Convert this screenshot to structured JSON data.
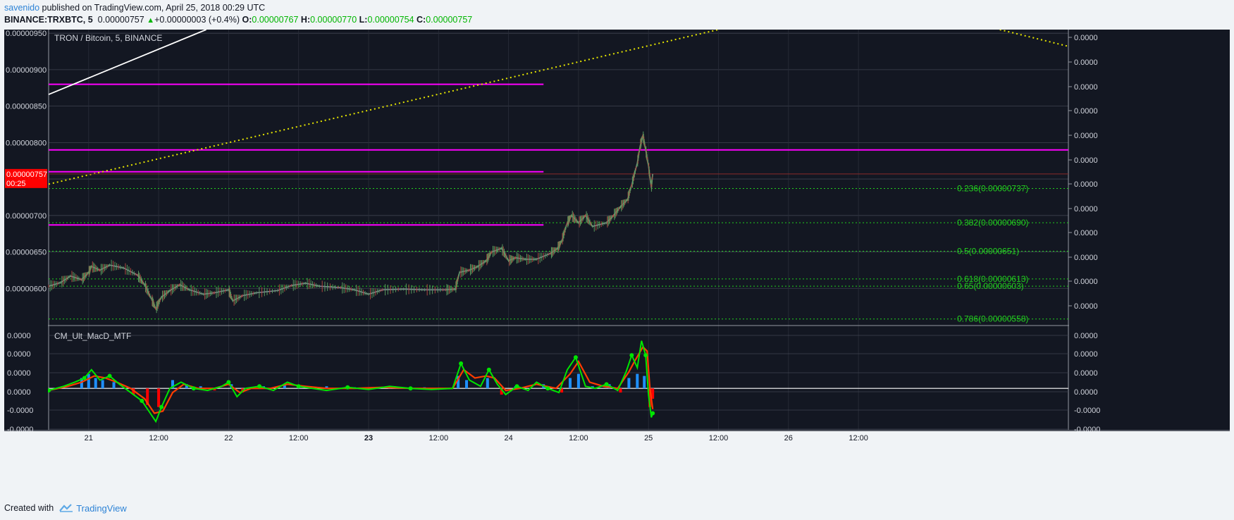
{
  "publish": {
    "author": "savenido",
    "text": "published on TradingView.com, April 25, 2018 00:29 UTC"
  },
  "ticker": {
    "symbol": "BINANCE:TRXBTC, 5",
    "last": "0.00000757",
    "change": "+0.00000003 (+0.4%)",
    "o_label": "O:",
    "o": "0.00000767",
    "h_label": "H:",
    "h": "0.00000770",
    "l_label": "L:",
    "l": "0.00000754",
    "c_label": "C:",
    "c": "0.00000757"
  },
  "footer": {
    "created_with": "Created with",
    "brand": "TradingView"
  },
  "colors": {
    "background": "#131722",
    "grid": "#3f4350",
    "axis_text": "#d1d4dc",
    "fib": "#22d01e",
    "magenta": "#ff00ff",
    "trend_yellow": "#e6e600",
    "trend_white": "#ffffff",
    "macd_green": "#00e600",
    "macd_red": "#ff0000",
    "hist_blue": "#1e90ff",
    "price_tag": "#ff0000"
  },
  "chart_data": [
    {
      "type": "candlestick",
      "title": "TRON / Bitcoin, 5, BINANCE",
      "y_ticks": [
        "0.00000950",
        "0.00000900",
        "0.00000850",
        "0.00000800",
        "0.00000750",
        "0.00000700",
        "0.00000650",
        "0.00000600"
      ],
      "right_ticks": "0.0000",
      "ylim": [
        5.5e-06,
        9.55e-06
      ],
      "x_tick_labels": [
        "21",
        "12:00",
        "22",
        "12:00",
        "23",
        "12:00",
        "24",
        "12:00",
        "25",
        "12:00",
        "26",
        "12:00"
      ],
      "x_tick_positions": [
        1,
        1.5,
        2,
        2.5,
        3,
        3.5,
        4,
        4.5,
        5,
        5.5,
        6,
        6.5
      ],
      "xlim": [
        0.714,
        8.0
      ],
      "last_price_label": "0.00000757",
      "last_price_value": 7.57e-06,
      "countdown": "00:25",
      "price_series": [
        [
          0.714,
          6.03e-06
        ],
        [
          0.8,
          6.08e-06
        ],
        [
          0.87,
          6.17e-06
        ],
        [
          0.95,
          6.12e-06
        ],
        [
          1.0,
          6.22e-06
        ],
        [
          1.02,
          6.3e-06
        ],
        [
          1.08,
          6.25e-06
        ],
        [
          1.15,
          6.32e-06
        ],
        [
          1.25,
          6.28e-06
        ],
        [
          1.35,
          6.18e-06
        ],
        [
          1.4,
          6.05e-06
        ],
        [
          1.45,
          5.85e-06
        ],
        [
          1.48,
          5.72e-06
        ],
        [
          1.52,
          5.88e-06
        ],
        [
          1.58,
          5.97e-06
        ],
        [
          1.65,
          6.05e-06
        ],
        [
          1.72,
          5.98e-06
        ],
        [
          1.82,
          5.92e-06
        ],
        [
          1.9,
          5.94e-06
        ],
        [
          2.0,
          5.98e-06
        ],
        [
          2.03,
          5.83e-06
        ],
        [
          2.1,
          5.9e-06
        ],
        [
          2.2,
          5.94e-06
        ],
        [
          2.35,
          5.97e-06
        ],
        [
          2.45,
          6.04e-06
        ],
        [
          2.55,
          6.07e-06
        ],
        [
          2.65,
          6.03e-06
        ],
        [
          2.8,
          6.01e-06
        ],
        [
          2.9,
          5.98e-06
        ],
        [
          3.0,
          5.92e-06
        ],
        [
          3.1,
          5.98e-06
        ],
        [
          3.25,
          5.99e-06
        ],
        [
          3.4,
          5.98e-06
        ],
        [
          3.55,
          5.98e-06
        ],
        [
          3.62,
          5.99e-06
        ],
        [
          3.65,
          6.22e-06
        ],
        [
          3.72,
          6.25e-06
        ],
        [
          3.78,
          6.3e-06
        ],
        [
          3.84,
          6.38e-06
        ],
        [
          3.88,
          6.5e-06
        ],
        [
          3.95,
          6.55e-06
        ],
        [
          4.0,
          6.38e-06
        ],
        [
          4.05,
          6.42e-06
        ],
        [
          4.12,
          6.4e-06
        ],
        [
          4.2,
          6.4e-06
        ],
        [
          4.3,
          6.48e-06
        ],
        [
          4.35,
          6.55e-06
        ],
        [
          4.38,
          6.65e-06
        ],
        [
          4.42,
          6.9e-06
        ],
        [
          4.45,
          7e-06
        ],
        [
          4.5,
          6.9e-06
        ],
        [
          4.55,
          7e-06
        ],
        [
          4.6,
          6.85e-06
        ],
        [
          4.7,
          6.9e-06
        ],
        [
          4.75,
          7e-06
        ],
        [
          4.8,
          7.12e-06
        ],
        [
          4.85,
          7.22e-06
        ],
        [
          4.88,
          7.42e-06
        ],
        [
          4.92,
          7.72e-06
        ],
        [
          4.94,
          7.95e-06
        ],
        [
          4.96,
          8.1e-06
        ],
        [
          4.98,
          7.9e-06
        ],
        [
          5.0,
          7.68e-06
        ],
        [
          5.02,
          7.38e-06
        ],
        [
          5.03,
          7.57e-06
        ]
      ],
      "horizontal_levels": [
        {
          "value": 8.8e-06,
          "from": 0.714,
          "to": 4.25
        },
        {
          "value": 7.9e-06,
          "from": 0.714,
          "to": 8.0
        },
        {
          "value": 7.6e-06,
          "from": 0.714,
          "to": 4.25
        },
        {
          "value": 6.87e-06,
          "from": 0.714,
          "to": 4.25
        }
      ],
      "fib_levels": [
        {
          "label": "0.236(0.00000737)",
          "value": 7.37e-06
        },
        {
          "label": "0.382(0.00000690)",
          "value": 6.9e-06
        },
        {
          "label": "0.5(0.00000651)",
          "value": 6.51e-06
        },
        {
          "label": "0.618(0.00000613)",
          "value": 6.13e-06
        },
        {
          "label": "0.65(0.00000603)",
          "value": 6.03e-06
        },
        {
          "label": "0.786(0.00000558)",
          "value": 5.58e-06
        }
      ],
      "trend_lines": [
        {
          "style": "dotted",
          "color": "yellow",
          "points": [
            [
              0.714,
              7.43e-06
            ],
            [
              5.5,
              9.55e-06
            ]
          ]
        },
        {
          "style": "dotted",
          "color": "yellow",
          "points": [
            [
              7.51,
              9.55e-06
            ],
            [
              8.0,
              9.32e-06
            ]
          ]
        },
        {
          "style": "solid",
          "color": "white",
          "points": [
            [
              0.714,
              8.66e-06
            ],
            [
              1.84,
              9.55e-06
            ]
          ]
        }
      ]
    },
    {
      "type": "line",
      "title": "CM_Ult_MacD_MTF",
      "y_ticks": [
        "0.0000",
        "0.0000",
        "0.0000",
        "0.0000",
        "-0.0000",
        "-0.0000"
      ],
      "right_ticks": [
        "0.0000",
        "0.0000",
        "0.0000",
        "0.0000",
        "-0.0000",
        "-0.0000"
      ],
      "ylim": [
        -2,
        3
      ],
      "zero_line": 0,
      "macd": [
        [
          0.714,
          -0.1
        ],
        [
          0.82,
          0.1
        ],
        [
          0.9,
          0.3
        ],
        [
          0.97,
          0.5
        ],
        [
          1.02,
          0.9
        ],
        [
          1.08,
          0.4
        ],
        [
          1.15,
          0.6
        ],
        [
          1.22,
          0.2
        ],
        [
          1.3,
          -0.2
        ],
        [
          1.38,
          -0.6
        ],
        [
          1.43,
          -1.1
        ],
        [
          1.48,
          -1.6
        ],
        [
          1.52,
          -0.9
        ],
        [
          1.58,
          0.0
        ],
        [
          1.66,
          0.3
        ],
        [
          1.75,
          0.0
        ],
        [
          1.85,
          -0.1
        ],
        [
          1.95,
          0.1
        ],
        [
          2.0,
          0.3
        ],
        [
          2.06,
          -0.4
        ],
        [
          2.12,
          0.0
        ],
        [
          2.22,
          0.1
        ],
        [
          2.32,
          -0.1
        ],
        [
          2.42,
          0.3
        ],
        [
          2.5,
          0.1
        ],
        [
          2.6,
          0.0
        ],
        [
          2.7,
          -0.1
        ],
        [
          2.85,
          0.05
        ],
        [
          3.0,
          -0.05
        ],
        [
          3.15,
          0.1
        ],
        [
          3.3,
          0.0
        ],
        [
          3.45,
          -0.05
        ],
        [
          3.6,
          0.0
        ],
        [
          3.66,
          1.2
        ],
        [
          3.72,
          0.4
        ],
        [
          3.8,
          0.1
        ],
        [
          3.86,
          0.9
        ],
        [
          3.92,
          0.2
        ],
        [
          3.98,
          -0.3
        ],
        [
          4.06,
          0.1
        ],
        [
          4.14,
          -0.1
        ],
        [
          4.2,
          0.3
        ],
        [
          4.28,
          0.0
        ],
        [
          4.36,
          -0.2
        ],
        [
          4.42,
          0.9
        ],
        [
          4.48,
          1.5
        ],
        [
          4.55,
          0.1
        ],
        [
          4.62,
          0.0
        ],
        [
          4.7,
          0.2
        ],
        [
          4.78,
          -0.1
        ],
        [
          4.84,
          0.8
        ],
        [
          4.88,
          1.6
        ],
        [
          4.92,
          1.0
        ],
        [
          4.95,
          2.3
        ],
        [
          4.98,
          1.6
        ],
        [
          5.0,
          -0.3
        ],
        [
          5.02,
          -1.4
        ],
        [
          5.03,
          -1.2
        ]
      ],
      "signal": [
        [
          0.714,
          -0.1
        ],
        [
          0.85,
          0.1
        ],
        [
          0.95,
          0.3
        ],
        [
          1.04,
          0.6
        ],
        [
          1.12,
          0.5
        ],
        [
          1.2,
          0.3
        ],
        [
          1.3,
          0.0
        ],
        [
          1.4,
          -0.5
        ],
        [
          1.47,
          -1.2
        ],
        [
          1.53,
          -1.1
        ],
        [
          1.6,
          -0.2
        ],
        [
          1.68,
          0.2
        ],
        [
          1.78,
          0.0
        ],
        [
          1.9,
          0.0
        ],
        [
          2.0,
          0.2
        ],
        [
          2.08,
          -0.2
        ],
        [
          2.16,
          0.0
        ],
        [
          2.3,
          0.0
        ],
        [
          2.42,
          0.2
        ],
        [
          2.55,
          0.1
        ],
        [
          2.7,
          0.0
        ],
        [
          2.9,
          0.0
        ],
        [
          3.1,
          0.05
        ],
        [
          3.3,
          0.0
        ],
        [
          3.6,
          0.0
        ],
        [
          3.68,
          0.9
        ],
        [
          3.76,
          0.5
        ],
        [
          3.84,
          0.6
        ],
        [
          3.9,
          0.5
        ],
        [
          3.98,
          -0.1
        ],
        [
          4.08,
          0.0
        ],
        [
          4.2,
          0.2
        ],
        [
          4.34,
          0.0
        ],
        [
          4.44,
          0.7
        ],
        [
          4.5,
          1.3
        ],
        [
          4.58,
          0.3
        ],
        [
          4.68,
          0.1
        ],
        [
          4.78,
          0.0
        ],
        [
          4.86,
          0.8
        ],
        [
          4.9,
          1.3
        ],
        [
          4.96,
          2.0
        ],
        [
          4.99,
          1.8
        ],
        [
          5.01,
          0.0
        ],
        [
          5.03,
          -1.0
        ]
      ],
      "histogram": [
        [
          0.95,
          0.5
        ],
        [
          1.0,
          0.7
        ],
        [
          1.05,
          0.5
        ],
        [
          1.1,
          0.4
        ],
        [
          1.18,
          0.3
        ],
        [
          1.32,
          -0.3
        ],
        [
          1.42,
          -0.8
        ],
        [
          1.5,
          -0.9
        ],
        [
          1.6,
          0.4
        ],
        [
          1.7,
          0.2
        ],
        [
          1.8,
          0.1
        ],
        [
          1.9,
          -0.1
        ],
        [
          2.02,
          0.2
        ],
        [
          2.1,
          -0.2
        ],
        [
          2.25,
          0.1
        ],
        [
          2.4,
          0.2
        ],
        [
          2.5,
          0.1
        ],
        [
          2.7,
          0.1
        ],
        [
          2.9,
          0.05
        ],
        [
          3.15,
          0.1
        ],
        [
          3.4,
          0.05
        ],
        [
          3.64,
          0.6
        ],
        [
          3.7,
          0.4
        ],
        [
          3.85,
          0.5
        ],
        [
          3.95,
          -0.3
        ],
        [
          4.05,
          0.1
        ],
        [
          4.25,
          0.2
        ],
        [
          4.38,
          -0.2
        ],
        [
          4.44,
          0.5
        ],
        [
          4.5,
          0.7
        ],
        [
          4.6,
          0.1
        ],
        [
          4.72,
          0.2
        ],
        [
          4.8,
          -0.2
        ],
        [
          4.86,
          0.5
        ],
        [
          4.92,
          0.7
        ],
        [
          4.97,
          0.6
        ],
        [
          5.01,
          -0.9
        ],
        [
          5.03,
          -0.5
        ]
      ]
    }
  ]
}
